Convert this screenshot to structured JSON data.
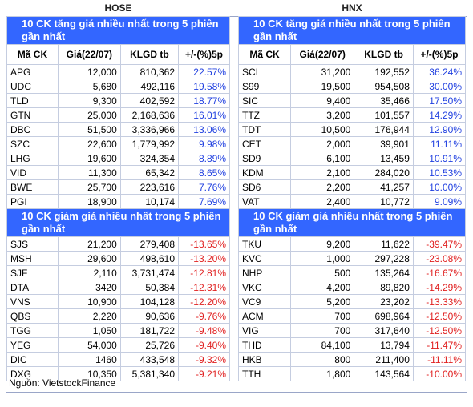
{
  "sides": [
    {
      "title": "HOSE",
      "columns": [
        "Mã CK",
        "Giá(22/07)",
        "KLGD tb",
        "+/-(%)5p"
      ],
      "gainers": {
        "heading": "10 CK tăng giá nhiều nhất trong 5 phiên gần nhất",
        "rows": [
          [
            "APG",
            "12,000",
            "810,362",
            "22.57%"
          ],
          [
            "UDC",
            "5,680",
            "492,116",
            "19.58%"
          ],
          [
            "TLD",
            "9,300",
            "402,592",
            "18.77%"
          ],
          [
            "GTN",
            "25,000",
            "2,168,636",
            "16.01%"
          ],
          [
            "DBC",
            "51,500",
            "3,336,966",
            "13.06%"
          ],
          [
            "SZC",
            "22,600",
            "1,779,992",
            "9.98%"
          ],
          [
            "LHG",
            "19,600",
            "324,354",
            "8.89%"
          ],
          [
            "VID",
            "11,300",
            "65,342",
            "8.65%"
          ],
          [
            "BWE",
            "25,700",
            "223,616",
            "7.76%"
          ],
          [
            "PGI",
            "18,900",
            "10,174",
            "7.69%"
          ]
        ]
      },
      "losers": {
        "heading": "10 CK giảm giá nhiều nhất trong 5 phiên gần nhất",
        "rows": [
          [
            "SJS",
            "21,200",
            "279,408",
            "-13.65%"
          ],
          [
            "MSH",
            "29,600",
            "498,610",
            "-13.20%"
          ],
          [
            "SJF",
            "2,110",
            "3,731,474",
            "-12.81%"
          ],
          [
            "DTA",
            "3420",
            "50,384",
            "-12.31%"
          ],
          [
            "VNS",
            "10,900",
            "104,128",
            "-12.20%"
          ],
          [
            "QBS",
            "2,220",
            "90,636",
            "-9.76%"
          ],
          [
            "TGG",
            "1,050",
            "181,722",
            "-9.48%"
          ],
          [
            "YEG",
            "54,000",
            "25,726",
            "-9.40%"
          ],
          [
            "DIC",
            "1460",
            "433,548",
            "-9.32%"
          ],
          [
            "DXG",
            "10,350",
            "5,381,340",
            "-9.21%"
          ]
        ]
      }
    },
    {
      "title": "HNX",
      "columns": [
        "Mã CK",
        "Giá(22/07)",
        "KLGD tb",
        "+/-(%)5p"
      ],
      "gainers": {
        "heading": "10 CK tăng giá nhiều nhất trong 5 phiên gần nhất",
        "rows": [
          [
            "SCI",
            "31,200",
            "192,552",
            "36.24%"
          ],
          [
            "S99",
            "19,500",
            "954,508",
            "30.00%"
          ],
          [
            "SIC",
            "9,400",
            "35,466",
            "17.50%"
          ],
          [
            "TTZ",
            "3,200",
            "101,557",
            "14.29%"
          ],
          [
            "TDT",
            "10,500",
            "176,944",
            "12.90%"
          ],
          [
            "CET",
            "2,000",
            "39,901",
            "11.11%"
          ],
          [
            "SD9",
            "6,100",
            "13,459",
            "10.91%"
          ],
          [
            "KDM",
            "2,100",
            "284,020",
            "10.53%"
          ],
          [
            "SD6",
            "2,200",
            "41,257",
            "10.00%"
          ],
          [
            "VAT",
            "2,400",
            "10,772",
            "9.09%"
          ]
        ]
      },
      "losers": {
        "heading": "10 CK giảm giá nhiều nhất trong 5 phiên gần nhất",
        "rows": [
          [
            "TKU",
            "9,200",
            "11,622",
            "-39.47%"
          ],
          [
            "KVC",
            "1,000",
            "297,228",
            "-23.08%"
          ],
          [
            "NHP",
            "500",
            "135,264",
            "-16.67%"
          ],
          [
            "VKC",
            "4,200",
            "89,820",
            "-14.29%"
          ],
          [
            "VC9",
            "5,200",
            "23,202",
            "-13.33%"
          ],
          [
            "ACM",
            "700",
            "698,964",
            "-12.50%"
          ],
          [
            "VIG",
            "700",
            "317,640",
            "-12.50%"
          ],
          [
            "THD",
            "84,100",
            "13,794",
            "-11.47%"
          ],
          [
            "HKB",
            "800",
            "211,400",
            "-11.11%"
          ],
          [
            "TTH",
            "1,800",
            "143,564",
            "-10.00%"
          ]
        ]
      }
    }
  ],
  "source": "Nguồn: VietstockFinance"
}
